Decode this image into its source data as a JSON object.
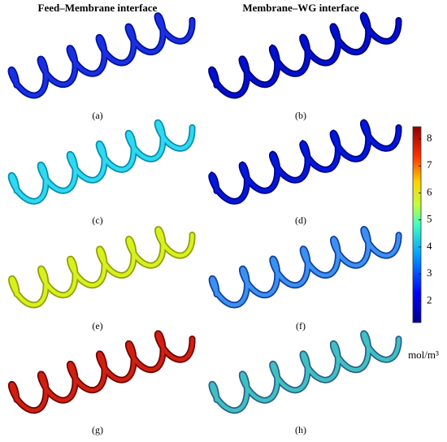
{
  "headers": [
    "Feed–Membrane interface",
    "Membrane–WG interface"
  ],
  "panels": [
    "(a)",
    "(b)",
    "(c)",
    "(d)",
    "(e)",
    "(f)",
    "(g)",
    "(h)"
  ],
  "colorbar": {
    "range": [
      1.2,
      8.45
    ],
    "ticks": [
      2,
      3,
      4,
      5,
      6,
      7,
      8
    ],
    "unit": "mol/m³"
  }
}
